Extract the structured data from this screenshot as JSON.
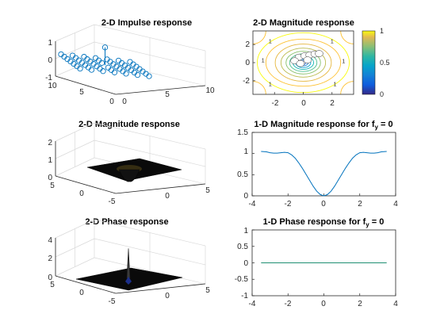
{
  "figure": {
    "colors": {
      "axis": "#262626",
      "grid": "#d9d9d9",
      "line_blue": "#0072bd",
      "line_teal": "#1f8f73",
      "surface_dark": "#0a0a0a",
      "surface_light": "#3a3a3a"
    }
  },
  "chart_data": [
    {
      "id": "impulse",
      "type": "stem3",
      "title": "2-D Impulse response",
      "zlim": [
        -1,
        1
      ],
      "z_ticks": [
        "1",
        "0",
        "-1"
      ],
      "x_ticks": [
        "0",
        "5",
        "10"
      ],
      "y_ticks": [
        "10",
        "5",
        "0"
      ],
      "grid_x": 7,
      "grid_y": 7,
      "baseline_value": 0,
      "peak_value": 1,
      "peak_index": [
        3,
        3
      ]
    },
    {
      "id": "magnitude2d",
      "type": "contour",
      "title": "2-D Magnitude response",
      "xlim": [
        -3.5,
        3.5
      ],
      "ylim": [
        -3.5,
        3.5
      ],
      "x_ticks": [
        "-2",
        "0",
        "2"
      ],
      "y_ticks": [
        "2",
        "0",
        "-2"
      ],
      "contour_levels": [
        1,
        0.9,
        0.8,
        0.7,
        0.6,
        0.5,
        0.4,
        0.3,
        0.2,
        0.1
      ],
      "contour_label": "1",
      "colorbar": {
        "range": [
          0,
          1
        ],
        "ticks": [
          "1",
          "0.5",
          "0"
        ]
      }
    },
    {
      "id": "magnitude3d",
      "type": "surface",
      "title": "2-D Magnitude response",
      "zlim": [
        0,
        2
      ],
      "z_ticks": [
        "2",
        "1",
        "0"
      ],
      "x_ticks": [
        "0",
        "5"
      ],
      "y_ticks": [
        "5",
        "0",
        "-5"
      ],
      "center_value": 0,
      "edge_value": 1
    },
    {
      "id": "magnitude1d",
      "type": "line",
      "title": "1-D Magnitude response for f",
      "title_sub": "y",
      "title_tail": " = 0",
      "xlim": [
        -4,
        4
      ],
      "ylim": [
        0,
        1.5
      ],
      "x_ticks": [
        "-4",
        "-2",
        "0",
        "2",
        "4"
      ],
      "y_ticks": [
        "1.5",
        "1",
        "0.5",
        "0"
      ],
      "x": [
        -3.5,
        -3.2,
        -3.0,
        -2.8,
        -2.6,
        -2.4,
        -2.2,
        -2.0,
        -1.8,
        -1.6,
        -1.4,
        -1.2,
        -1.0,
        -0.8,
        -0.6,
        -0.4,
        -0.2,
        0.0,
        0.2,
        0.4,
        0.6,
        0.8,
        1.0,
        1.2,
        1.4,
        1.6,
        1.8,
        2.0,
        2.2,
        2.4,
        2.6,
        2.8,
        3.0,
        3.2,
        3.5
      ],
      "y": [
        1.05,
        1.04,
        1.02,
        1.01,
        1.01,
        1.02,
        1.03,
        1.02,
        0.97,
        0.89,
        0.78,
        0.65,
        0.51,
        0.37,
        0.23,
        0.11,
        0.03,
        0.0,
        0.03,
        0.11,
        0.23,
        0.37,
        0.51,
        0.65,
        0.78,
        0.89,
        0.97,
        1.02,
        1.03,
        1.02,
        1.01,
        1.01,
        1.02,
        1.04,
        1.05
      ]
    },
    {
      "id": "phase3d",
      "type": "surface",
      "title": "2-D Phase response",
      "zlim": [
        0,
        4
      ],
      "z_ticks": [
        "4",
        "2",
        "0"
      ],
      "x_ticks": [
        "0",
        "5"
      ],
      "y_ticks": [
        "5",
        "0",
        "-5"
      ],
      "spike_value": 3.14
    },
    {
      "id": "phase1d",
      "type": "line",
      "title": "1-D Phase response for f",
      "title_sub": "y",
      "title_tail": " = 0",
      "xlim": [
        -4,
        4
      ],
      "ylim": [
        -1,
        1
      ],
      "x_ticks": [
        "-4",
        "-2",
        "0",
        "2",
        "4"
      ],
      "y_ticks": [
        "1",
        "0.5",
        "0",
        "-0.5",
        "-1"
      ],
      "x": [
        -3.5,
        3.5
      ],
      "y": [
        0,
        0
      ]
    }
  ]
}
